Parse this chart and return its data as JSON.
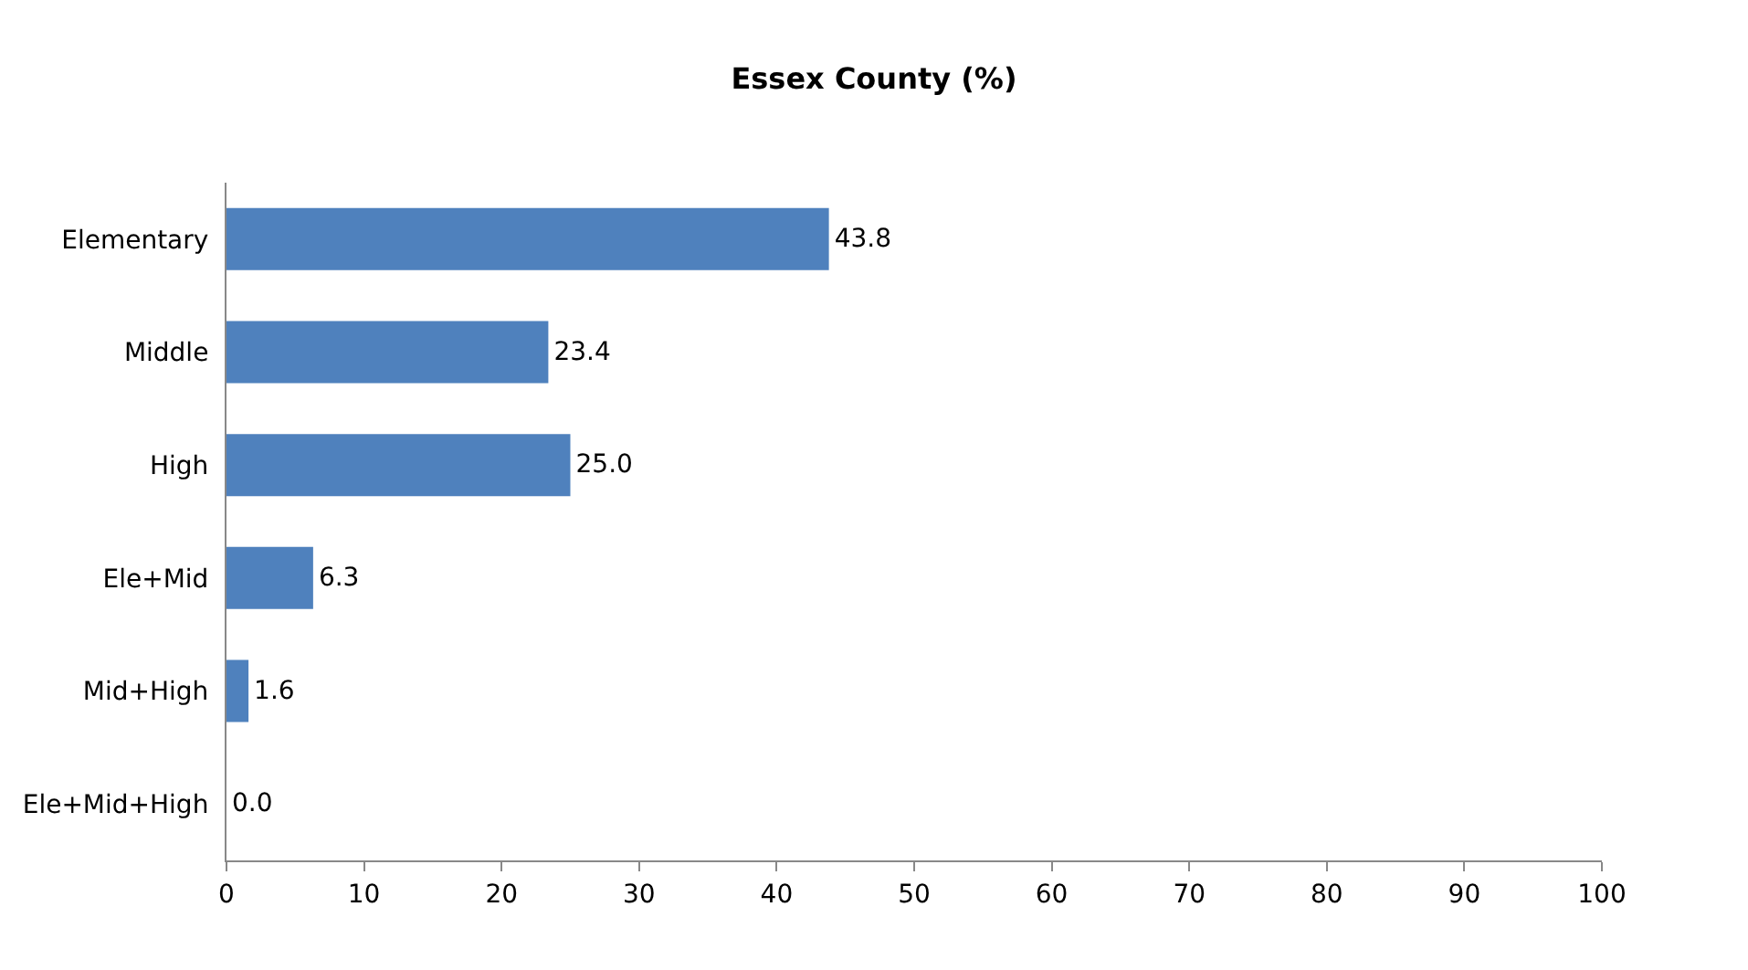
{
  "chart_data": {
    "type": "bar",
    "orientation": "horizontal",
    "title": "Essex County (%)",
    "categories": [
      "Elementary",
      "Middle",
      "High",
      "Ele+Mid",
      "Mid+High",
      "Ele+Mid+High"
    ],
    "values": [
      43.8,
      23.4,
      25.0,
      6.3,
      1.6,
      0.0
    ],
    "value_labels": [
      "43.8",
      "23.4",
      "25.0",
      "6.3",
      "1.6",
      "0.0"
    ],
    "color": "#4f81bd",
    "xlim": [
      0,
      100
    ],
    "xticks": [
      0,
      10,
      20,
      30,
      40,
      50,
      60,
      70,
      80,
      90,
      100
    ],
    "legend": false
  }
}
